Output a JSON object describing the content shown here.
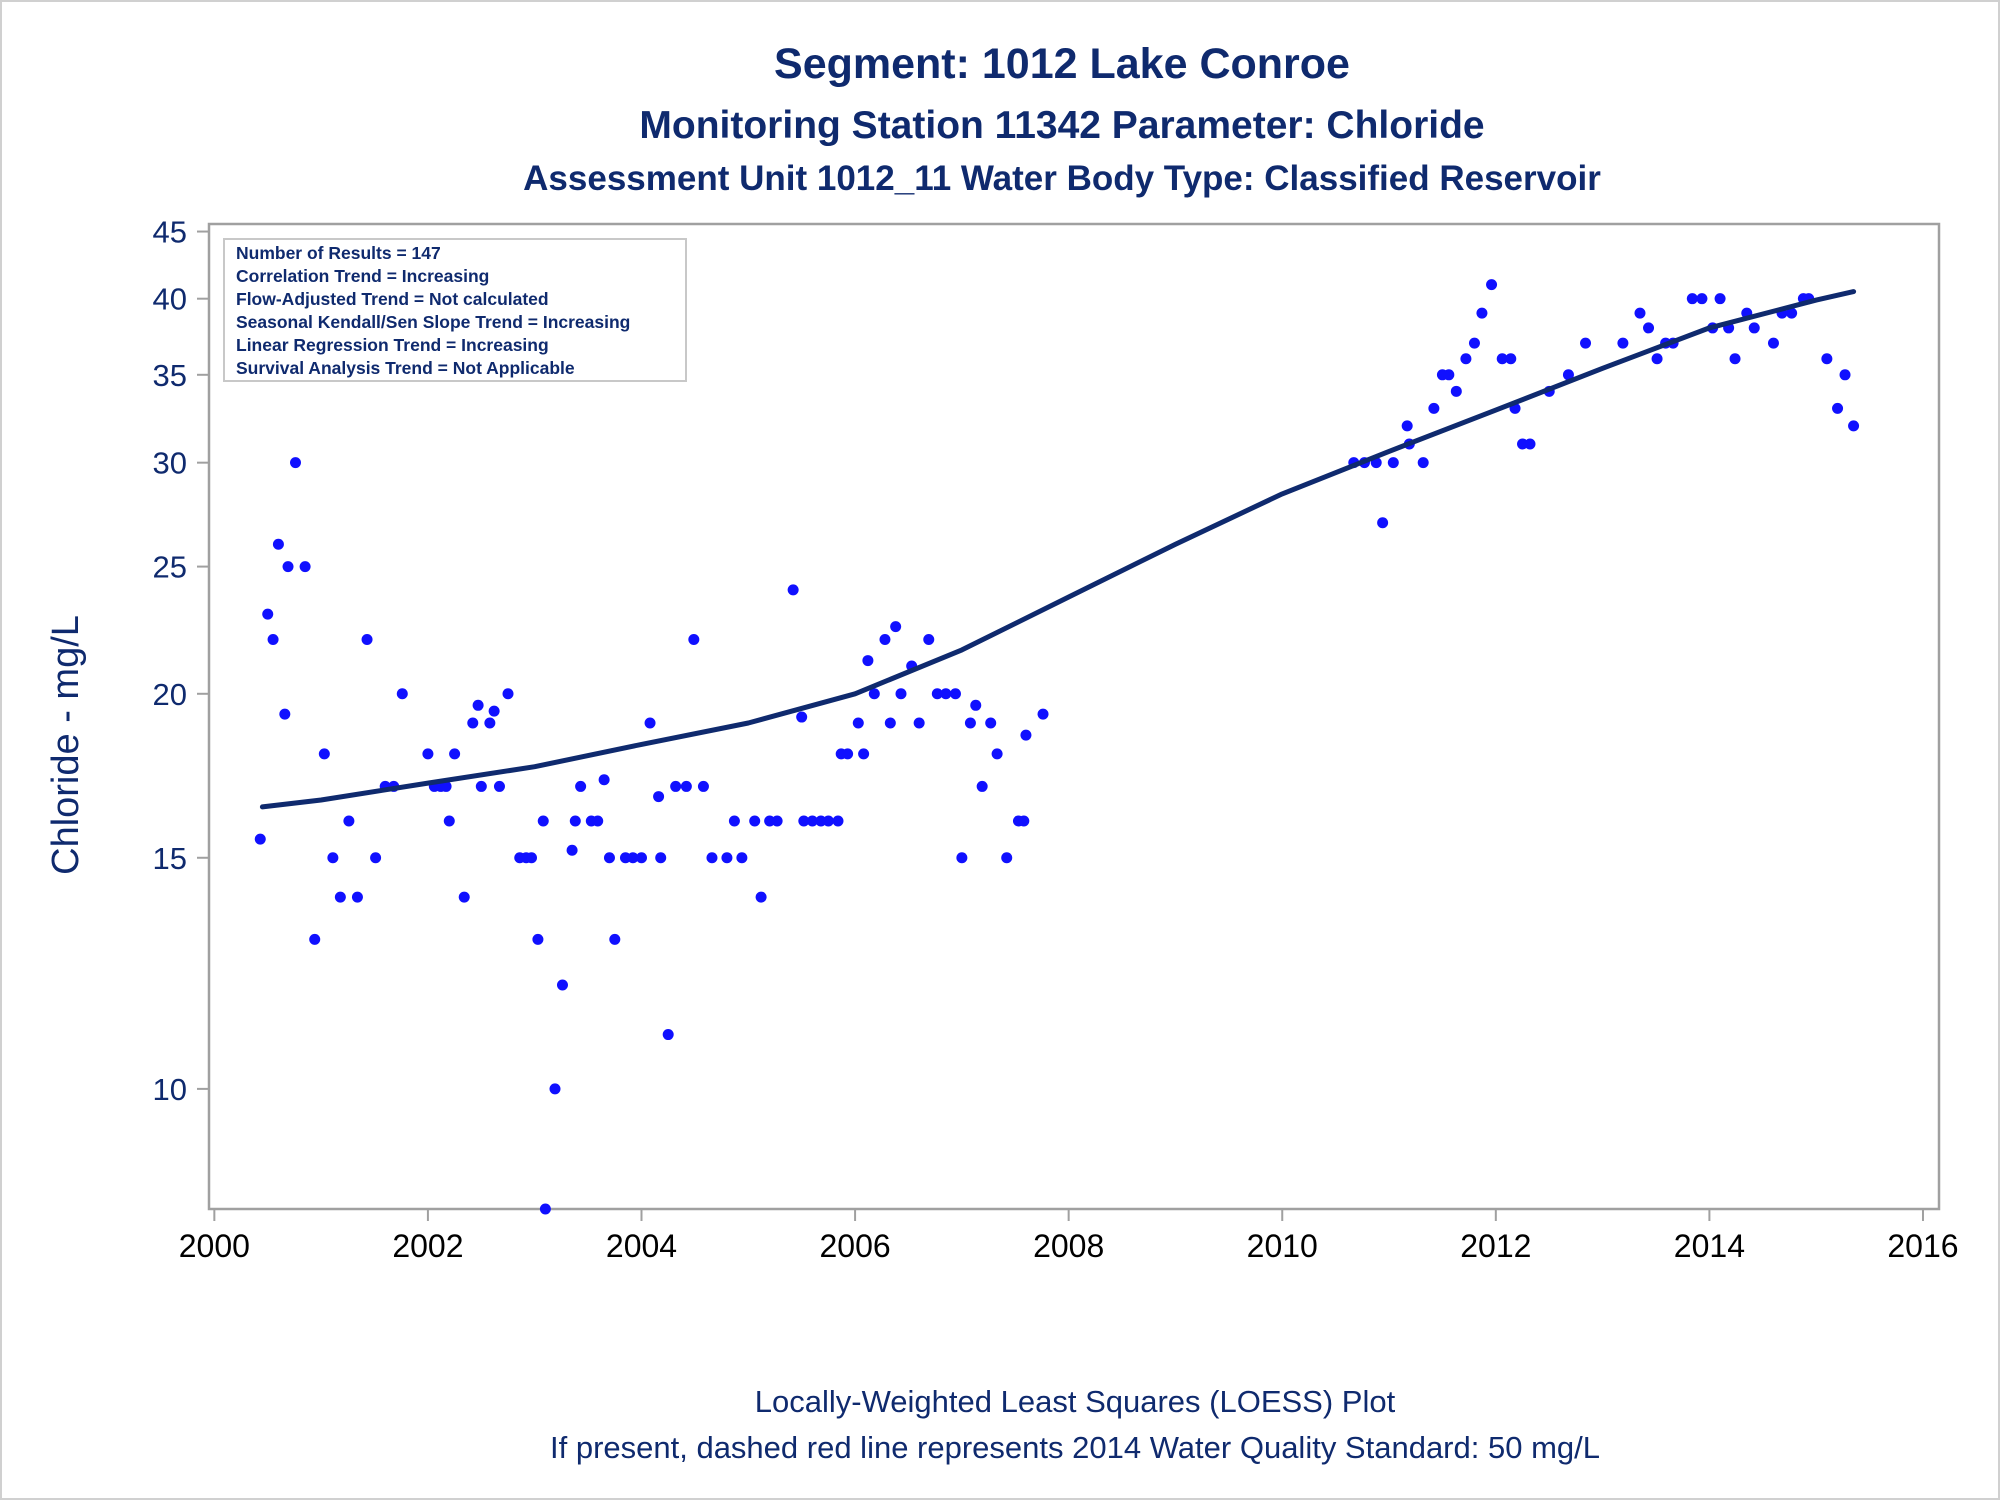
{
  "titles": {
    "line1": "Segment: 1012  Lake Conroe",
    "line2": "Monitoring Station 11342 Parameter: Chloride",
    "line3": "Assessment Unit 1012_11   Water Body Type: Classified Reservoir"
  },
  "footnotes": {
    "line1": "Locally-Weighted Least Squares (LOESS) Plot",
    "line2": "If present, dashed red line represents 2014 Water Quality Standard: 50     mg/L"
  },
  "stats_box": {
    "lines": [
      "Number of Results = 147",
      "Correlation Trend = Increasing",
      "Flow-Adjusted Trend = Not calculated",
      "Seasonal Kendall/Sen Slope Trend = Increasing",
      "Linear Regression Trend = Increasing",
      "Survival Analysis Trend = Not Applicable"
    ]
  },
  "colors": {
    "title": "#0f2a6e",
    "points": "#1010ff",
    "loess_line": "#0f2a6e",
    "axis": "#a0a0a0"
  },
  "chart_data": {
    "type": "scatter",
    "ylabel": "Chloride - mg/L",
    "xlabel": "",
    "y_scale": "log",
    "xlim": [
      1999.95,
      2016.15
    ],
    "ylim": [
      8.1,
      45.6
    ],
    "x_ticks": [
      2000,
      2002,
      2004,
      2006,
      2008,
      2010,
      2012,
      2014,
      2016
    ],
    "x_tick_labels": [
      "2000",
      "2002",
      "2004",
      "2006",
      "2008",
      "2010",
      "2012",
      "2014",
      "2016"
    ],
    "y_ticks": [
      10,
      15,
      20,
      25,
      30,
      35,
      40,
      45
    ],
    "y_tick_labels": [
      "10",
      "15",
      "20",
      "25",
      "30",
      "35",
      "40",
      "45"
    ],
    "grid": false,
    "legend": "top-left",
    "series": [
      {
        "type": "scatter",
        "points": [
          [
            2000.43,
            15.5
          ],
          [
            2000.5,
            23
          ],
          [
            2000.55,
            22
          ],
          [
            2000.6,
            26
          ],
          [
            2000.66,
            19.3
          ],
          [
            2000.69,
            25
          ],
          [
            2000.76,
            30
          ],
          [
            2000.85,
            25
          ],
          [
            2000.94,
            13
          ],
          [
            2001.03,
            18
          ],
          [
            2001.11,
            15
          ],
          [
            2001.18,
            14
          ],
          [
            2001.26,
            16
          ],
          [
            2001.34,
            14
          ],
          [
            2001.43,
            22
          ],
          [
            2001.51,
            15
          ],
          [
            2001.6,
            17
          ],
          [
            2001.68,
            17
          ],
          [
            2001.76,
            20
          ],
          [
            2002.0,
            18
          ],
          [
            2002.06,
            17
          ],
          [
            2002.12,
            17
          ],
          [
            2002.17,
            17
          ],
          [
            2002.2,
            16
          ],
          [
            2002.25,
            18
          ],
          [
            2002.34,
            14
          ],
          [
            2002.42,
            19
          ],
          [
            2002.47,
            19.6
          ],
          [
            2002.5,
            17
          ],
          [
            2002.58,
            19
          ],
          [
            2002.62,
            19.4
          ],
          [
            2002.67,
            17
          ],
          [
            2002.75,
            20
          ],
          [
            2002.86,
            15
          ],
          [
            2002.92,
            15
          ],
          [
            2002.97,
            15
          ],
          [
            2003.03,
            13
          ],
          [
            2003.08,
            16
          ],
          [
            2003.1,
            8.1
          ],
          [
            2003.19,
            10
          ],
          [
            2003.26,
            12
          ],
          [
            2003.35,
            15.2
          ],
          [
            2003.38,
            16
          ],
          [
            2003.43,
            17
          ],
          [
            2003.53,
            16
          ],
          [
            2003.59,
            16
          ],
          [
            2003.65,
            17.2
          ],
          [
            2003.7,
            15
          ],
          [
            2003.75,
            13
          ],
          [
            2003.85,
            15
          ],
          [
            2003.92,
            15
          ],
          [
            2004.0,
            15
          ],
          [
            2004.08,
            19
          ],
          [
            2004.16,
            16.7
          ],
          [
            2004.18,
            15
          ],
          [
            2004.25,
            11
          ],
          [
            2004.32,
            17
          ],
          [
            2004.42,
            17
          ],
          [
            2004.49,
            22
          ],
          [
            2004.58,
            17
          ],
          [
            2004.66,
            15
          ],
          [
            2004.8,
            15
          ],
          [
            2004.87,
            16
          ],
          [
            2004.94,
            15
          ],
          [
            2005.06,
            16
          ],
          [
            2005.12,
            14
          ],
          [
            2005.2,
            16
          ],
          [
            2005.27,
            16
          ],
          [
            2005.42,
            24
          ],
          [
            2005.5,
            19.2
          ],
          [
            2005.52,
            16
          ],
          [
            2005.6,
            16
          ],
          [
            2005.68,
            16
          ],
          [
            2005.75,
            16
          ],
          [
            2005.84,
            16
          ],
          [
            2005.87,
            18
          ],
          [
            2005.93,
            18
          ],
          [
            2006.03,
            19
          ],
          [
            2006.08,
            18
          ],
          [
            2006.12,
            21.2
          ],
          [
            2006.18,
            20
          ],
          [
            2006.28,
            22
          ],
          [
            2006.33,
            19
          ],
          [
            2006.38,
            22.5
          ],
          [
            2006.43,
            20
          ],
          [
            2006.53,
            21
          ],
          [
            2006.6,
            19
          ],
          [
            2006.69,
            22
          ],
          [
            2006.77,
            20
          ],
          [
            2006.85,
            20
          ],
          [
            2006.94,
            20
          ],
          [
            2007.0,
            15
          ],
          [
            2007.08,
            19
          ],
          [
            2007.13,
            19.6
          ],
          [
            2007.19,
            17
          ],
          [
            2007.27,
            19
          ],
          [
            2007.33,
            18
          ],
          [
            2007.42,
            15
          ],
          [
            2007.53,
            16
          ],
          [
            2007.58,
            16
          ],
          [
            2007.6,
            18.6
          ],
          [
            2007.76,
            19.3
          ],
          [
            2010.67,
            30
          ],
          [
            2010.77,
            30
          ],
          [
            2010.88,
            30
          ],
          [
            2010.94,
            27
          ],
          [
            2011.04,
            30
          ],
          [
            2011.17,
            32
          ],
          [
            2011.19,
            31
          ],
          [
            2011.32,
            30
          ],
          [
            2011.42,
            33
          ],
          [
            2011.5,
            35
          ],
          [
            2011.56,
            35
          ],
          [
            2011.63,
            34
          ],
          [
            2011.72,
            36
          ],
          [
            2011.8,
            37
          ],
          [
            2011.87,
            39
          ],
          [
            2011.96,
            41
          ],
          [
            2012.06,
            36
          ],
          [
            2012.14,
            36
          ],
          [
            2012.18,
            33
          ],
          [
            2012.25,
            31
          ],
          [
            2012.32,
            31
          ],
          [
            2012.5,
            34
          ],
          [
            2012.68,
            35
          ],
          [
            2012.84,
            37
          ],
          [
            2013.19,
            37
          ],
          [
            2013.35,
            39
          ],
          [
            2013.43,
            38
          ],
          [
            2013.51,
            36
          ],
          [
            2013.59,
            37
          ],
          [
            2013.66,
            37
          ],
          [
            2013.84,
            40
          ],
          [
            2013.93,
            40
          ],
          [
            2014.03,
            38
          ],
          [
            2014.1,
            40
          ],
          [
            2014.18,
            38
          ],
          [
            2014.24,
            36
          ],
          [
            2014.35,
            39
          ],
          [
            2014.42,
            38
          ],
          [
            2014.6,
            37
          ],
          [
            2014.68,
            39
          ],
          [
            2014.77,
            39
          ],
          [
            2014.88,
            40
          ],
          [
            2014.93,
            40
          ],
          [
            2015.1,
            36
          ],
          [
            2015.2,
            33
          ],
          [
            2015.27,
            35
          ],
          [
            2015.35,
            32
          ]
        ]
      },
      {
        "type": "line",
        "points": [
          [
            2000.45,
            16.4
          ],
          [
            2001.0,
            16.6
          ],
          [
            2002.0,
            17.1
          ],
          [
            2003.0,
            17.6
          ],
          [
            2004.0,
            18.3
          ],
          [
            2005.0,
            19.0
          ],
          [
            2006.0,
            20.0
          ],
          [
            2007.0,
            21.6
          ],
          [
            2008.0,
            23.7
          ],
          [
            2009.0,
            26.0
          ],
          [
            2010.0,
            28.4
          ],
          [
            2011.0,
            30.6
          ],
          [
            2012.0,
            32.9
          ],
          [
            2013.0,
            35.4
          ],
          [
            2014.0,
            38.0
          ],
          [
            2015.0,
            39.9
          ],
          [
            2015.35,
            40.5
          ]
        ]
      }
    ]
  }
}
